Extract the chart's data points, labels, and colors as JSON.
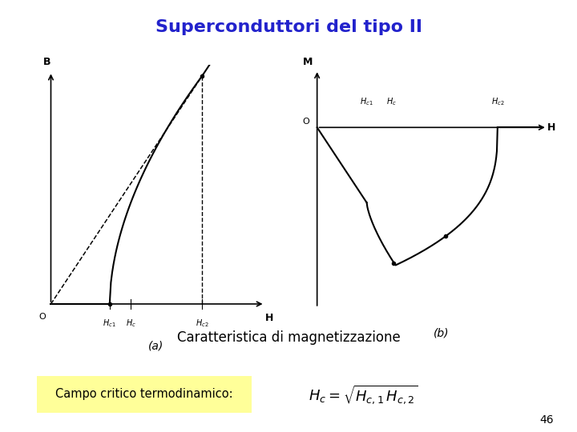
{
  "title": "Superconduttori del tipo II",
  "title_color": "#2222CC",
  "title_fontsize": 16,
  "subtitle": "Caratteristica di magnetizzazione",
  "subtitle_fontsize": 12,
  "label_a": "(a)",
  "label_b": "(b)",
  "campo_text": "Campo critico termodinamico:",
  "formula_text": "$H_c = \\sqrt{H_{c,1}\\,H_{c,2}}$",
  "page_number": "46",
  "background_color": "#ffffff",
  "highlight_color": "#FFFF99",
  "text_color": "#000000"
}
